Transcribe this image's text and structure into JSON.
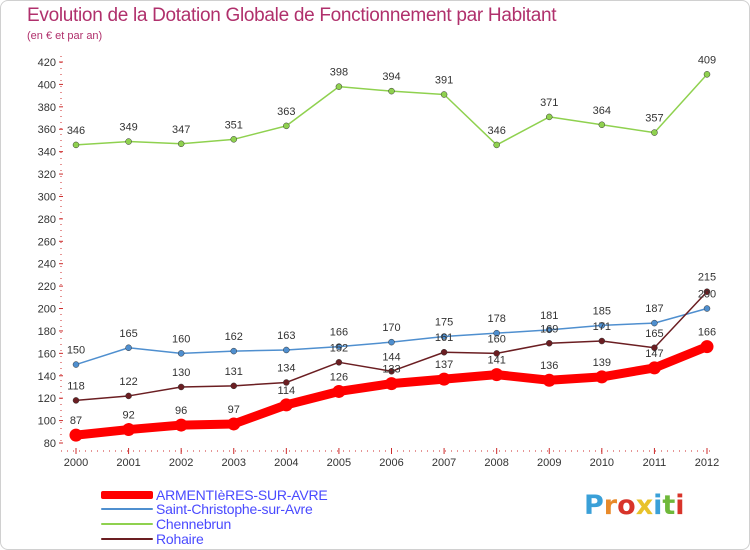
{
  "title": "Evolution de la Dotation Globale de Fonctionnement par Habitant",
  "subtitle": "(en € et par an)",
  "logo": {
    "letters": [
      "P",
      "r",
      "o",
      "x",
      "i",
      "t",
      "i"
    ],
    "colors": [
      "#3aa0d8",
      "#e88a2a",
      "#d8342a",
      "#e8c22a",
      "#3aa0d8",
      "#6fb83a",
      "#d8342a"
    ]
  },
  "chart_data": {
    "type": "line",
    "title": "Evolution de la Dotation Globale de Fonctionnement par Habitant",
    "subtitle": "(en € et par an)",
    "xlabel": "",
    "ylabel": "",
    "ylim": [
      80,
      420
    ],
    "yticks": [
      80,
      100,
      120,
      140,
      160,
      180,
      200,
      220,
      240,
      260,
      280,
      300,
      320,
      340,
      360,
      380,
      400,
      420
    ],
    "grid": false,
    "legend": "bottom",
    "categories": [
      "2000",
      "2001",
      "2002",
      "2003",
      "2004",
      "2005",
      "2006",
      "2007",
      "2008",
      "2009",
      "2010",
      "2011",
      "2012"
    ],
    "series": [
      {
        "name": "Chennebrun",
        "color": "#8fd14f",
        "emphasis": false,
        "values": [
          346,
          349,
          347,
          351,
          363,
          398,
          394,
          391,
          346,
          371,
          364,
          357,
          409
        ]
      },
      {
        "name": "Saint-Christophe-sur-Avre",
        "color": "#4f8fcf",
        "emphasis": false,
        "values": [
          150,
          165,
          160,
          162,
          163,
          166,
          170,
          175,
          178,
          181,
          185,
          187,
          200
        ]
      },
      {
        "name": "Rohaire",
        "color": "#6b1e22",
        "emphasis": false,
        "values": [
          118,
          122,
          130,
          131,
          134,
          152,
          144,
          161,
          160,
          169,
          171,
          165,
          215
        ]
      },
      {
        "name": "ARMENTIèRES-SUR-AVRE",
        "color": "#ff0000",
        "emphasis": true,
        "values": [
          87,
          92,
          96,
          97,
          114,
          126,
          133,
          137,
          141,
          136,
          139,
          147,
          166
        ]
      }
    ],
    "legend_order": [
      "ARMENTIèRES-SUR-AVRE",
      "Saint-Christophe-sur-Avre",
      "Chennebrun",
      "Rohaire"
    ]
  }
}
